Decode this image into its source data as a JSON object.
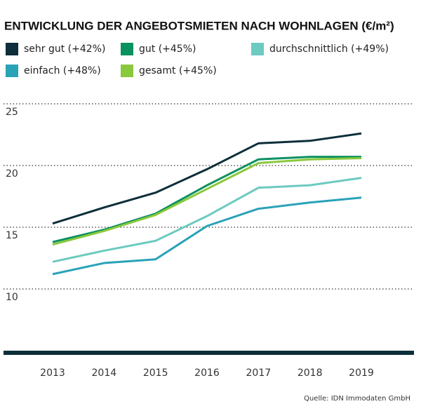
{
  "chart_data": {
    "type": "line",
    "title": "ENTWICKLUNG DER ANGEBOTSMIETEN NACH WOHNLAGEN (€/m²)",
    "source": "Quelle: IDN Immodaten GmbH",
    "categories": [
      "2013",
      "2014",
      "2015",
      "2016",
      "2017",
      "2018",
      "2019"
    ],
    "series": [
      {
        "name": "sehr gut (+42%)",
        "color": "#0d2e3a",
        "values": [
          15.3,
          16.6,
          17.8,
          19.7,
          21.8,
          22.0,
          22.6
        ]
      },
      {
        "name": "gut (+45%)",
        "color": "#0a9160",
        "values": [
          13.8,
          14.8,
          16.1,
          18.4,
          20.5,
          20.7,
          20.7
        ]
      },
      {
        "name": "durchschnittlich (+49%)",
        "color": "#6ccac0",
        "values": [
          12.2,
          13.1,
          13.9,
          15.9,
          18.2,
          18.4,
          19.0
        ]
      },
      {
        "name": "einfach (+48%)",
        "color": "#2aa2b8",
        "values": [
          11.2,
          12.1,
          12.4,
          15.1,
          16.5,
          17.0,
          17.4
        ]
      },
      {
        "name": "gesamt (+45%)",
        "color": "#8ac83d",
        "values": [
          13.6,
          14.7,
          16.0,
          18.1,
          20.2,
          20.5,
          20.6
        ]
      }
    ],
    "ylim": [
      5,
      25
    ],
    "yticks": [
      10,
      15,
      20,
      25
    ],
    "grid": true
  }
}
